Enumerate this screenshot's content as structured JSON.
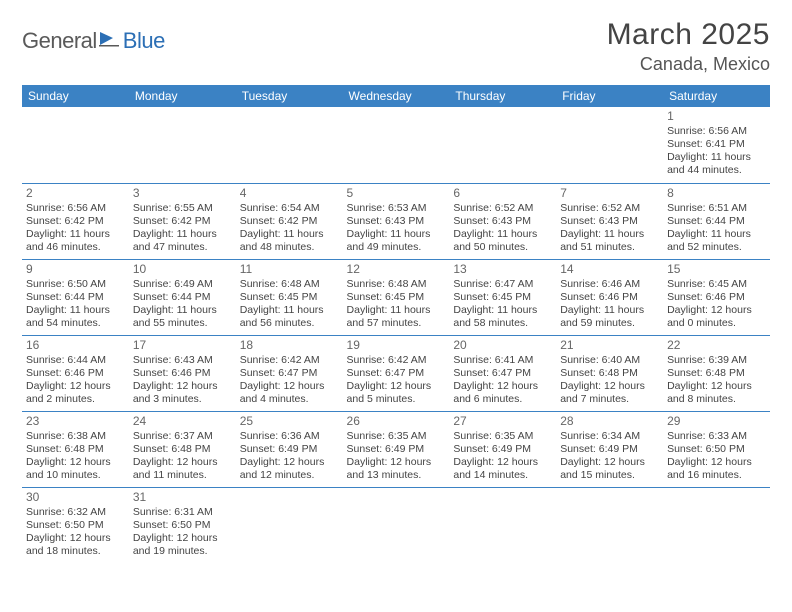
{
  "logo": {
    "text1": "General",
    "text2": "Blue"
  },
  "title": "March 2025",
  "location": "Canada, Mexico",
  "colors": {
    "header_bg": "#3b82c4",
    "header_text": "#ffffff",
    "border": "#3b82c4",
    "logo_blue": "#2c6fb5",
    "logo_gray": "#5a5a5a",
    "body_text": "#444444"
  },
  "day_headers": [
    "Sunday",
    "Monday",
    "Tuesday",
    "Wednesday",
    "Thursday",
    "Friday",
    "Saturday"
  ],
  "weeks": [
    [
      null,
      null,
      null,
      null,
      null,
      null,
      {
        "n": "1",
        "sr": "Sunrise: 6:56 AM",
        "ss": "Sunset: 6:41 PM",
        "dl1": "Daylight: 11 hours",
        "dl2": "and 44 minutes."
      }
    ],
    [
      {
        "n": "2",
        "sr": "Sunrise: 6:56 AM",
        "ss": "Sunset: 6:42 PM",
        "dl1": "Daylight: 11 hours",
        "dl2": "and 46 minutes."
      },
      {
        "n": "3",
        "sr": "Sunrise: 6:55 AM",
        "ss": "Sunset: 6:42 PM",
        "dl1": "Daylight: 11 hours",
        "dl2": "and 47 minutes."
      },
      {
        "n": "4",
        "sr": "Sunrise: 6:54 AM",
        "ss": "Sunset: 6:42 PM",
        "dl1": "Daylight: 11 hours",
        "dl2": "and 48 minutes."
      },
      {
        "n": "5",
        "sr": "Sunrise: 6:53 AM",
        "ss": "Sunset: 6:43 PM",
        "dl1": "Daylight: 11 hours",
        "dl2": "and 49 minutes."
      },
      {
        "n": "6",
        "sr": "Sunrise: 6:52 AM",
        "ss": "Sunset: 6:43 PM",
        "dl1": "Daylight: 11 hours",
        "dl2": "and 50 minutes."
      },
      {
        "n": "7",
        "sr": "Sunrise: 6:52 AM",
        "ss": "Sunset: 6:43 PM",
        "dl1": "Daylight: 11 hours",
        "dl2": "and 51 minutes."
      },
      {
        "n": "8",
        "sr": "Sunrise: 6:51 AM",
        "ss": "Sunset: 6:44 PM",
        "dl1": "Daylight: 11 hours",
        "dl2": "and 52 minutes."
      }
    ],
    [
      {
        "n": "9",
        "sr": "Sunrise: 6:50 AM",
        "ss": "Sunset: 6:44 PM",
        "dl1": "Daylight: 11 hours",
        "dl2": "and 54 minutes."
      },
      {
        "n": "10",
        "sr": "Sunrise: 6:49 AM",
        "ss": "Sunset: 6:44 PM",
        "dl1": "Daylight: 11 hours",
        "dl2": "and 55 minutes."
      },
      {
        "n": "11",
        "sr": "Sunrise: 6:48 AM",
        "ss": "Sunset: 6:45 PM",
        "dl1": "Daylight: 11 hours",
        "dl2": "and 56 minutes."
      },
      {
        "n": "12",
        "sr": "Sunrise: 6:48 AM",
        "ss": "Sunset: 6:45 PM",
        "dl1": "Daylight: 11 hours",
        "dl2": "and 57 minutes."
      },
      {
        "n": "13",
        "sr": "Sunrise: 6:47 AM",
        "ss": "Sunset: 6:45 PM",
        "dl1": "Daylight: 11 hours",
        "dl2": "and 58 minutes."
      },
      {
        "n": "14",
        "sr": "Sunrise: 6:46 AM",
        "ss": "Sunset: 6:46 PM",
        "dl1": "Daylight: 11 hours",
        "dl2": "and 59 minutes."
      },
      {
        "n": "15",
        "sr": "Sunrise: 6:45 AM",
        "ss": "Sunset: 6:46 PM",
        "dl1": "Daylight: 12 hours",
        "dl2": "and 0 minutes."
      }
    ],
    [
      {
        "n": "16",
        "sr": "Sunrise: 6:44 AM",
        "ss": "Sunset: 6:46 PM",
        "dl1": "Daylight: 12 hours",
        "dl2": "and 2 minutes."
      },
      {
        "n": "17",
        "sr": "Sunrise: 6:43 AM",
        "ss": "Sunset: 6:46 PM",
        "dl1": "Daylight: 12 hours",
        "dl2": "and 3 minutes."
      },
      {
        "n": "18",
        "sr": "Sunrise: 6:42 AM",
        "ss": "Sunset: 6:47 PM",
        "dl1": "Daylight: 12 hours",
        "dl2": "and 4 minutes."
      },
      {
        "n": "19",
        "sr": "Sunrise: 6:42 AM",
        "ss": "Sunset: 6:47 PM",
        "dl1": "Daylight: 12 hours",
        "dl2": "and 5 minutes."
      },
      {
        "n": "20",
        "sr": "Sunrise: 6:41 AM",
        "ss": "Sunset: 6:47 PM",
        "dl1": "Daylight: 12 hours",
        "dl2": "and 6 minutes."
      },
      {
        "n": "21",
        "sr": "Sunrise: 6:40 AM",
        "ss": "Sunset: 6:48 PM",
        "dl1": "Daylight: 12 hours",
        "dl2": "and 7 minutes."
      },
      {
        "n": "22",
        "sr": "Sunrise: 6:39 AM",
        "ss": "Sunset: 6:48 PM",
        "dl1": "Daylight: 12 hours",
        "dl2": "and 8 minutes."
      }
    ],
    [
      {
        "n": "23",
        "sr": "Sunrise: 6:38 AM",
        "ss": "Sunset: 6:48 PM",
        "dl1": "Daylight: 12 hours",
        "dl2": "and 10 minutes."
      },
      {
        "n": "24",
        "sr": "Sunrise: 6:37 AM",
        "ss": "Sunset: 6:48 PM",
        "dl1": "Daylight: 12 hours",
        "dl2": "and 11 minutes."
      },
      {
        "n": "25",
        "sr": "Sunrise: 6:36 AM",
        "ss": "Sunset: 6:49 PM",
        "dl1": "Daylight: 12 hours",
        "dl2": "and 12 minutes."
      },
      {
        "n": "26",
        "sr": "Sunrise: 6:35 AM",
        "ss": "Sunset: 6:49 PM",
        "dl1": "Daylight: 12 hours",
        "dl2": "and 13 minutes."
      },
      {
        "n": "27",
        "sr": "Sunrise: 6:35 AM",
        "ss": "Sunset: 6:49 PM",
        "dl1": "Daylight: 12 hours",
        "dl2": "and 14 minutes."
      },
      {
        "n": "28",
        "sr": "Sunrise: 6:34 AM",
        "ss": "Sunset: 6:49 PM",
        "dl1": "Daylight: 12 hours",
        "dl2": "and 15 minutes."
      },
      {
        "n": "29",
        "sr": "Sunrise: 6:33 AM",
        "ss": "Sunset: 6:50 PM",
        "dl1": "Daylight: 12 hours",
        "dl2": "and 16 minutes."
      }
    ],
    [
      {
        "n": "30",
        "sr": "Sunrise: 6:32 AM",
        "ss": "Sunset: 6:50 PM",
        "dl1": "Daylight: 12 hours",
        "dl2": "and 18 minutes."
      },
      {
        "n": "31",
        "sr": "Sunrise: 6:31 AM",
        "ss": "Sunset: 6:50 PM",
        "dl1": "Daylight: 12 hours",
        "dl2": "and 19 minutes."
      },
      null,
      null,
      null,
      null,
      null
    ]
  ]
}
